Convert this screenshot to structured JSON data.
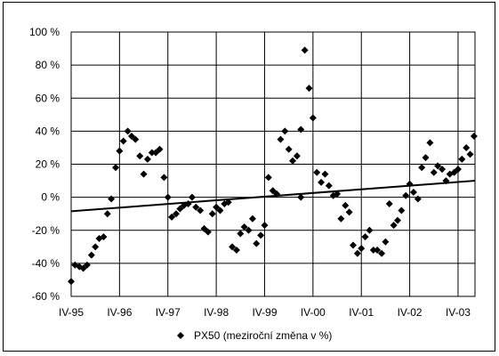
{
  "chart_data": {
    "type": "scatter",
    "title": "",
    "xlabel": "",
    "ylabel": "",
    "y_ticks": [
      "100 %",
      "80 %",
      "60 %",
      "40 %",
      "20 %",
      "0 %",
      "-20 %",
      "-40 %",
      "-60 %"
    ],
    "y_tick_values": [
      100,
      80,
      60,
      40,
      20,
      0,
      -20,
      -40,
      -60
    ],
    "ylim": [
      -60,
      100
    ],
    "x_ticks": [
      "IV-95",
      "IV-96",
      "IV-97",
      "IV-98",
      "IV-99",
      "IV-00",
      "IV-01",
      "IV-02",
      "IV-03"
    ],
    "x_tick_values": [
      1995.25,
      1996.25,
      1997.25,
      1998.25,
      1999.25,
      2000.25,
      2001.25,
      2002.25,
      2003.25
    ],
    "xlim": [
      1995.25,
      2003.6
    ],
    "grid": true,
    "marker": "diamond",
    "legend_position": "bottom",
    "series": [
      {
        "name": "PX50 (meziroční změna v %)",
        "color": "#000000",
        "points": [
          {
            "x": 1995.25,
            "y": -51
          },
          {
            "x": 1995.33,
            "y": -41
          },
          {
            "x": 1995.42,
            "y": -42
          },
          {
            "x": 1995.5,
            "y": -43
          },
          {
            "x": 1995.58,
            "y": -41
          },
          {
            "x": 1995.67,
            "y": -35
          },
          {
            "x": 1995.75,
            "y": -30
          },
          {
            "x": 1995.83,
            "y": -25
          },
          {
            "x": 1995.92,
            "y": -24
          },
          {
            "x": 2000.0,
            "y": 0
          },
          {
            "x": 1996.0,
            "y": -10
          },
          {
            "x": 1996.08,
            "y": -1
          },
          {
            "x": 1996.17,
            "y": 18
          },
          {
            "x": 1996.25,
            "y": 28
          },
          {
            "x": 1996.33,
            "y": 34
          },
          {
            "x": 1996.42,
            "y": 40
          },
          {
            "x": 1996.5,
            "y": 37
          },
          {
            "x": 1996.58,
            "y": 35
          },
          {
            "x": 1996.67,
            "y": 25
          },
          {
            "x": 1996.75,
            "y": 14
          },
          {
            "x": 1996.83,
            "y": 23
          },
          {
            "x": 1996.92,
            "y": 27
          },
          {
            "x": 1997.0,
            "y": 27
          },
          {
            "x": 1997.08,
            "y": 29
          },
          {
            "x": 1997.17,
            "y": 12
          },
          {
            "x": 1997.25,
            "y": 0
          },
          {
            "x": 1997.33,
            "y": -12
          },
          {
            "x": 1997.42,
            "y": -10
          },
          {
            "x": 1997.5,
            "y": -7
          },
          {
            "x": 1997.58,
            "y": -5
          },
          {
            "x": 1997.67,
            "y": -4
          },
          {
            "x": 1997.75,
            "y": 0
          },
          {
            "x": 1997.83,
            "y": -6
          },
          {
            "x": 1997.92,
            "y": -8
          },
          {
            "x": 1998.0,
            "y": -19
          },
          {
            "x": 1998.08,
            "y": -21
          },
          {
            "x": 1998.17,
            "y": -10
          },
          {
            "x": 1998.25,
            "y": -6
          },
          {
            "x": 1998.33,
            "y": -8
          },
          {
            "x": 1998.42,
            "y": -4
          },
          {
            "x": 1998.5,
            "y": -3
          },
          {
            "x": 1998.58,
            "y": -30
          },
          {
            "x": 1998.67,
            "y": -32
          },
          {
            "x": 1998.75,
            "y": -22
          },
          {
            "x": 1998.83,
            "y": -18
          },
          {
            "x": 1998.92,
            "y": -20
          },
          {
            "x": 1999.0,
            "y": -13
          },
          {
            "x": 1999.08,
            "y": -28
          },
          {
            "x": 1999.17,
            "y": -23
          },
          {
            "x": 1999.25,
            "y": -17
          },
          {
            "x": 1999.33,
            "y": 12
          },
          {
            "x": 1999.42,
            "y": 4
          },
          {
            "x": 1999.5,
            "y": 2
          },
          {
            "x": 1999.58,
            "y": 35
          },
          {
            "x": 1999.67,
            "y": 40
          },
          {
            "x": 1999.75,
            "y": 29
          },
          {
            "x": 1999.83,
            "y": 22
          },
          {
            "x": 1999.92,
            "y": 25
          },
          {
            "x": 2000.0,
            "y": 41
          },
          {
            "x": 2000.08,
            "y": 89
          },
          {
            "x": 2000.17,
            "y": 66
          },
          {
            "x": 2000.25,
            "y": 48
          },
          {
            "x": 2000.33,
            "y": 15
          },
          {
            "x": 2000.42,
            "y": 9
          },
          {
            "x": 2000.5,
            "y": 14
          },
          {
            "x": 2000.58,
            "y": 7
          },
          {
            "x": 2000.67,
            "y": 1
          },
          {
            "x": 2000.75,
            "y": 2
          },
          {
            "x": 2000.83,
            "y": -13
          },
          {
            "x": 2000.92,
            "y": -5
          },
          {
            "x": 2001.0,
            "y": -9
          },
          {
            "x": 2001.08,
            "y": -29
          },
          {
            "x": 2001.17,
            "y": -34
          },
          {
            "x": 2001.25,
            "y": -31
          },
          {
            "x": 2001.33,
            "y": -24
          },
          {
            "x": 2001.42,
            "y": -20
          },
          {
            "x": 2001.5,
            "y": -32
          },
          {
            "x": 2001.58,
            "y": -32
          },
          {
            "x": 2001.67,
            "y": -34
          },
          {
            "x": 2001.75,
            "y": -27
          },
          {
            "x": 2001.83,
            "y": -4
          },
          {
            "x": 2001.92,
            "y": -17
          },
          {
            "x": 2002.0,
            "y": -14
          },
          {
            "x": 2002.08,
            "y": -8
          },
          {
            "x": 2002.17,
            "y": 1
          },
          {
            "x": 2002.25,
            "y": 8
          },
          {
            "x": 2002.33,
            "y": 3
          },
          {
            "x": 2002.42,
            "y": -1
          },
          {
            "x": 2002.5,
            "y": 18
          },
          {
            "x": 2002.58,
            "y": 24
          },
          {
            "x": 2002.67,
            "y": 33
          },
          {
            "x": 2002.75,
            "y": 15
          },
          {
            "x": 2002.83,
            "y": 19
          },
          {
            "x": 2002.92,
            "y": 17
          },
          {
            "x": 2003.0,
            "y": 10
          },
          {
            "x": 2003.08,
            "y": 14
          },
          {
            "x": 2003.17,
            "y": 15
          },
          {
            "x": 2003.25,
            "y": 17
          },
          {
            "x": 2003.33,
            "y": 23
          },
          {
            "x": 2003.42,
            "y": 30
          },
          {
            "x": 2003.5,
            "y": 26
          },
          {
            "x": 2003.58,
            "y": 37
          }
        ]
      }
    ],
    "trendline": {
      "type": "linear",
      "color": "#000000",
      "start": {
        "x": 1995.25,
        "y": -8.5
      },
      "end": {
        "x": 2003.6,
        "y": 10
      }
    }
  }
}
